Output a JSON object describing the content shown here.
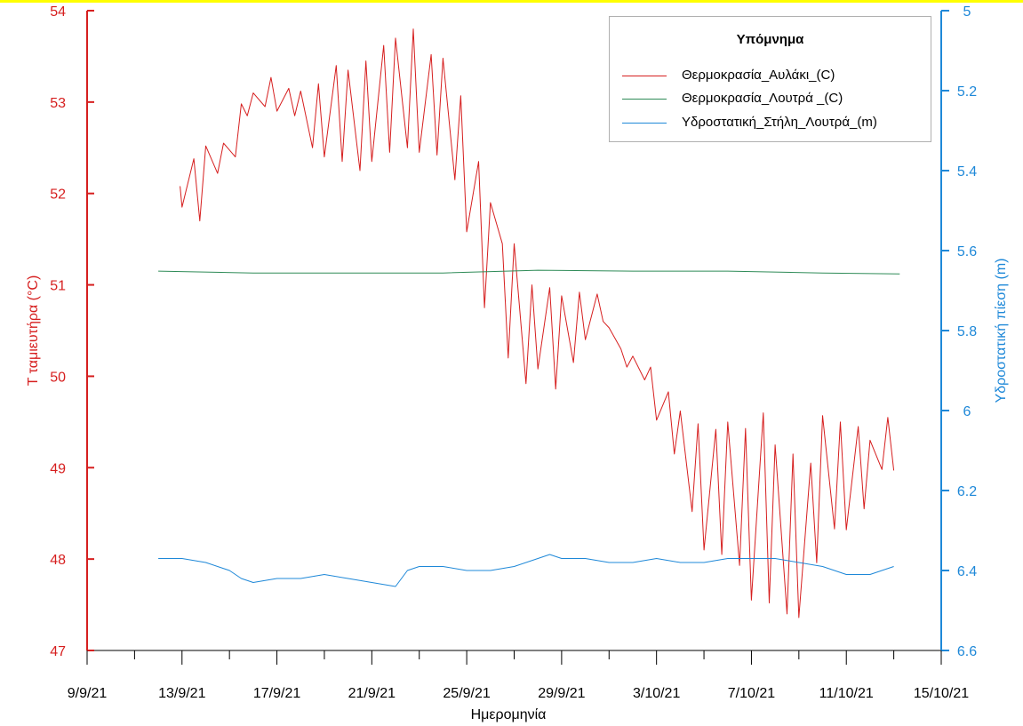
{
  "colors": {
    "left_axis": "#d61f1f",
    "right_axis": "#1e88d8",
    "x_axis": "#000000"
  },
  "chart_data": {
    "type": "line",
    "xlabel": "Ημερομηνία",
    "ylabel_left": "T ταμιευτήρα (°C)",
    "ylabel_right": "Υδροστατική πίεση (m)",
    "x_ticks": [
      "9/9/21",
      "13/9/21",
      "17/9/21",
      "21/9/21",
      "25/9/21",
      "29/9/21",
      "3/10/21",
      "7/10/21",
      "11/10/21",
      "15/10/21"
    ],
    "xlim": [
      "2021-09-09",
      "2021-10-15"
    ],
    "ylim_left": [
      47,
      54
    ],
    "yticks_left": [
      "47",
      "48",
      "49",
      "50",
      "51",
      "52",
      "53",
      "54"
    ],
    "ylim_right": [
      5,
      6.6
    ],
    "right_axis_inverted": true,
    "yticks_right": [
      "5",
      "5.2",
      "5.4",
      "5.6",
      "5.8",
      "6",
      "6.2",
      "6.4",
      "6.6"
    ],
    "legend_title": "Υπόμνημα",
    "legend_position": "top-right",
    "series": [
      {
        "name": "Θερμοκρασία_Αυλάκι_(C)",
        "color": "#d61f1f",
        "axis": "left",
        "x": [
          "2021-09-12T22:00",
          "2021-09-13",
          "2021-09-13T12:00",
          "2021-09-13T18:00",
          "2021-09-14",
          "2021-09-14T12:00",
          "2021-09-14T18:00",
          "2021-09-15T06:00",
          "2021-09-15T12:00",
          "2021-09-15T18:00",
          "2021-09-16",
          "2021-09-16T12:00",
          "2021-09-16T18:00",
          "2021-09-17",
          "2021-09-17T12:00",
          "2021-09-17T18:00",
          "2021-09-18",
          "2021-09-18T12:00",
          "2021-09-18T18:00",
          "2021-09-19",
          "2021-09-19T12:00",
          "2021-09-19T18:00",
          "2021-09-20",
          "2021-09-20T12:00",
          "2021-09-20T18:00",
          "2021-09-21",
          "2021-09-21T12:00",
          "2021-09-21T18:00",
          "2021-09-22",
          "2021-09-22T12:00",
          "2021-09-22T18:00",
          "2021-09-23",
          "2021-09-23T12:00",
          "2021-09-23T18:00",
          "2021-09-24",
          "2021-09-24T12:00",
          "2021-09-24T18:00",
          "2021-09-25",
          "2021-09-25T12:00",
          "2021-09-25T18:00",
          "2021-09-26",
          "2021-09-26T12:00",
          "2021-09-26T18:00",
          "2021-09-27",
          "2021-09-27T12:00",
          "2021-09-27T18:00",
          "2021-09-28",
          "2021-09-28T12:00",
          "2021-09-28T18:00",
          "2021-09-29",
          "2021-09-29T12:00",
          "2021-09-29T18:00",
          "2021-09-30",
          "2021-09-30T12:00",
          "2021-09-30T18:00",
          "2021-10-01",
          "2021-10-01T12:00",
          "2021-10-01T18:00",
          "2021-10-02",
          "2021-10-02T12:00",
          "2021-10-02T18:00",
          "2021-10-03",
          "2021-10-03T12:00",
          "2021-10-03T18:00",
          "2021-10-04",
          "2021-10-04T12:00",
          "2021-10-04T18:00",
          "2021-10-05",
          "2021-10-05T12:00",
          "2021-10-05T18:00",
          "2021-10-06",
          "2021-10-06T12:00",
          "2021-10-06T18:00",
          "2021-10-07",
          "2021-10-07T12:00",
          "2021-10-07T18:00",
          "2021-10-08",
          "2021-10-08T12:00",
          "2021-10-08T18:00",
          "2021-10-09",
          "2021-10-09T12:00",
          "2021-10-09T18:00",
          "2021-10-10",
          "2021-10-10T12:00",
          "2021-10-10T18:00",
          "2021-10-11",
          "2021-10-11T12:00",
          "2021-10-11T18:00",
          "2021-10-12",
          "2021-10-12T12:00",
          "2021-10-12T18:00",
          "2021-10-13"
        ],
        "y": [
          52.08,
          51.85,
          52.38,
          51.7,
          52.52,
          52.22,
          52.55,
          52.4,
          52.98,
          52.85,
          53.1,
          52.95,
          53.27,
          52.9,
          53.15,
          52.85,
          53.12,
          52.5,
          53.2,
          52.4,
          53.4,
          52.35,
          53.35,
          52.25,
          53.45,
          52.35,
          53.62,
          52.45,
          53.7,
          52.5,
          53.8,
          52.45,
          53.52,
          52.42,
          53.48,
          52.15,
          53.07,
          51.58,
          52.35,
          50.75,
          51.9,
          51.45,
          50.2,
          51.45,
          49.92,
          51.0,
          50.08,
          50.97,
          49.86,
          50.88,
          50.15,
          50.92,
          50.4,
          50.9,
          50.6,
          50.53,
          50.3,
          50.1,
          50.22,
          49.96,
          50.1,
          49.52,
          49.83,
          49.15,
          49.62,
          48.52,
          49.48,
          48.1,
          49.42,
          48.05,
          49.5,
          47.93,
          49.43,
          47.55,
          49.6,
          47.52,
          49.25,
          47.4,
          49.15,
          47.36,
          49.05,
          47.96,
          49.57,
          48.33,
          49.5,
          48.32,
          49.45,
          48.55,
          49.3,
          48.98,
          49.55,
          48.97
        ]
      },
      {
        "name": "Θερμοκρασία_Λουτρά _(C)",
        "color": "#2e8b57",
        "axis": "left",
        "x": [
          "2021-09-12",
          "2021-09-16",
          "2021-09-20",
          "2021-09-24",
          "2021-09-28",
          "2021-10-02",
          "2021-10-06",
          "2021-10-10",
          "2021-10-13T06:00"
        ],
        "y": [
          51.15,
          51.13,
          51.13,
          51.13,
          51.16,
          51.15,
          51.15,
          51.13,
          51.12
        ]
      },
      {
        "name": "Υδροστατική_Στήλη_Λουτρά_(m)",
        "color": "#1e88d8",
        "axis": "right",
        "x": [
          "2021-09-12",
          "2021-09-13",
          "2021-09-14",
          "2021-09-15",
          "2021-09-15T12:00",
          "2021-09-16",
          "2021-09-17",
          "2021-09-18",
          "2021-09-19",
          "2021-09-20",
          "2021-09-21",
          "2021-09-22",
          "2021-09-22T12:00",
          "2021-09-23",
          "2021-09-24",
          "2021-09-25",
          "2021-09-26",
          "2021-09-27",
          "2021-09-28",
          "2021-09-28T12:00",
          "2021-09-29",
          "2021-09-30",
          "2021-10-01",
          "2021-10-02",
          "2021-10-03",
          "2021-10-04",
          "2021-10-05",
          "2021-10-06",
          "2021-10-07",
          "2021-10-08",
          "2021-10-09",
          "2021-10-10",
          "2021-10-11",
          "2021-10-12",
          "2021-10-13"
        ],
        "y": [
          6.37,
          6.37,
          6.38,
          6.4,
          6.42,
          6.43,
          6.42,
          6.42,
          6.41,
          6.42,
          6.43,
          6.44,
          6.4,
          6.39,
          6.39,
          6.4,
          6.4,
          6.39,
          6.37,
          6.36,
          6.37,
          6.37,
          6.38,
          6.38,
          6.37,
          6.38,
          6.38,
          6.37,
          6.37,
          6.37,
          6.38,
          6.39,
          6.41,
          6.41,
          6.39
        ]
      }
    ]
  }
}
